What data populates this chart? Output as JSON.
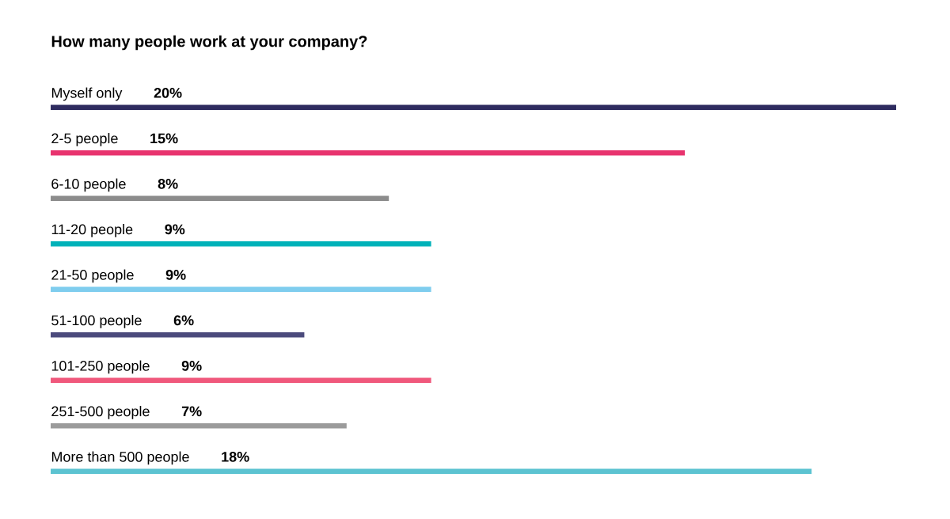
{
  "chart_data": {
    "type": "bar",
    "orientation": "horizontal",
    "title": "How many people work at your company?",
    "categories": [
      "Myself only",
      "2-5 people",
      "6-10 people",
      "11-20 people",
      "21-50 people",
      "51-100 people",
      "101-250 people",
      "251-500 people",
      "More than 500 people"
    ],
    "values": [
      20,
      15,
      8,
      9,
      9,
      6,
      9,
      7,
      18
    ],
    "value_labels": [
      "20%",
      "15%",
      "8%",
      "9%",
      "9%",
      "6%",
      "9%",
      "7%",
      "18%"
    ],
    "colors": [
      "#2e2b5f",
      "#e8336e",
      "#8c8c8c",
      "#00b2b9",
      "#7fcdee",
      "#4b4a7c",
      "#f0587c",
      "#9b9b9b",
      "#5cc3d1"
    ]
  }
}
